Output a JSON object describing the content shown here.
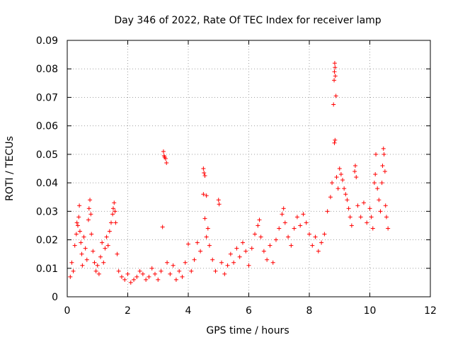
{
  "chart_data": {
    "type": "scatter",
    "title": "Day 346 of 2022, Rate Of TEC Index for receiver lamp",
    "xlabel": "GPS time / hours",
    "ylabel": "ROTI / TECUs",
    "xlim": [
      0,
      12
    ],
    "ylim": [
      0,
      0.09
    ],
    "x_ticks": [
      "0",
      "2",
      "4",
      "6",
      "8",
      "10",
      "12"
    ],
    "y_ticks": [
      "0",
      "0.01",
      "0.02",
      "0.03",
      "0.04",
      "0.05",
      "0.06",
      "0.07",
      "0.08",
      "0.09"
    ],
    "grid": true,
    "marker": "+",
    "color": "#ff0000",
    "series": [
      {
        "name": "ROTI",
        "points": [
          [
            0.1,
            0.007
          ],
          [
            0.15,
            0.012
          ],
          [
            0.2,
            0.009
          ],
          [
            0.25,
            0.018
          ],
          [
            0.3,
            0.022
          ],
          [
            0.32,
            0.026
          ],
          [
            0.35,
            0.025
          ],
          [
            0.38,
            0.028
          ],
          [
            0.4,
            0.032
          ],
          [
            0.42,
            0.023
          ],
          [
            0.45,
            0.019
          ],
          [
            0.48,
            0.015
          ],
          [
            0.5,
            0.011
          ],
          [
            0.55,
            0.021
          ],
          [
            0.6,
            0.017
          ],
          [
            0.65,
            0.013
          ],
          [
            0.7,
            0.027
          ],
          [
            0.72,
            0.031
          ],
          [
            0.75,
            0.034
          ],
          [
            0.78,
            0.029
          ],
          [
            0.8,
            0.022
          ],
          [
            0.85,
            0.016
          ],
          [
            0.9,
            0.012
          ],
          [
            0.95,
            0.009
          ],
          [
            1.0,
            0.011
          ],
          [
            1.05,
            0.008
          ],
          [
            1.1,
            0.014
          ],
          [
            1.15,
            0.019
          ],
          [
            1.2,
            0.012
          ],
          [
            1.25,
            0.017
          ],
          [
            1.3,
            0.021
          ],
          [
            1.35,
            0.018
          ],
          [
            1.4,
            0.023
          ],
          [
            1.45,
            0.026
          ],
          [
            1.5,
            0.029
          ],
          [
            1.52,
            0.031
          ],
          [
            1.55,
            0.033
          ],
          [
            1.58,
            0.03
          ],
          [
            1.6,
            0.026
          ],
          [
            1.65,
            0.015
          ],
          [
            1.7,
            0.009
          ],
          [
            1.8,
            0.007
          ],
          [
            1.9,
            0.006
          ],
          [
            2.0,
            0.008
          ],
          [
            2.1,
            0.005
          ],
          [
            2.2,
            0.006
          ],
          [
            2.3,
            0.007
          ],
          [
            2.4,
            0.009
          ],
          [
            2.5,
            0.008
          ],
          [
            2.6,
            0.006
          ],
          [
            2.7,
            0.007
          ],
          [
            2.8,
            0.01
          ],
          [
            2.9,
            0.008
          ],
          [
            3.0,
            0.006
          ],
          [
            3.1,
            0.009
          ],
          [
            3.15,
            0.0245
          ],
          [
            3.18,
            0.051
          ],
          [
            3.2,
            0.0495
          ],
          [
            3.22,
            0.049
          ],
          [
            3.25,
            0.0485
          ],
          [
            3.28,
            0.047
          ],
          [
            3.3,
            0.012
          ],
          [
            3.4,
            0.008
          ],
          [
            3.5,
            0.011
          ],
          [
            3.6,
            0.006
          ],
          [
            3.7,
            0.009
          ],
          [
            3.8,
            0.007
          ],
          [
            3.9,
            0.012
          ],
          [
            4.0,
            0.0185
          ],
          [
            4.1,
            0.009
          ],
          [
            4.2,
            0.013
          ],
          [
            4.3,
            0.019
          ],
          [
            4.4,
            0.016
          ],
          [
            4.5,
            0.045
          ],
          [
            4.52,
            0.0435
          ],
          [
            4.55,
            0.0425
          ],
          [
            4.5,
            0.036
          ],
          [
            4.6,
            0.0355
          ],
          [
            4.55,
            0.0275
          ],
          [
            4.6,
            0.021
          ],
          [
            4.65,
            0.024
          ],
          [
            4.7,
            0.018
          ],
          [
            4.8,
            0.013
          ],
          [
            4.9,
            0.009
          ],
          [
            5.0,
            0.034
          ],
          [
            5.02,
            0.0325
          ],
          [
            5.1,
            0.012
          ],
          [
            5.2,
            0.008
          ],
          [
            5.3,
            0.011
          ],
          [
            5.4,
            0.015
          ],
          [
            5.5,
            0.012
          ],
          [
            5.6,
            0.017
          ],
          [
            5.7,
            0.014
          ],
          [
            5.8,
            0.019
          ],
          [
            5.9,
            0.016
          ],
          [
            6.0,
            0.011
          ],
          [
            6.1,
            0.017
          ],
          [
            6.2,
            0.022
          ],
          [
            6.3,
            0.025
          ],
          [
            6.35,
            0.027
          ],
          [
            6.4,
            0.021
          ],
          [
            6.5,
            0.016
          ],
          [
            6.6,
            0.013
          ],
          [
            6.7,
            0.018
          ],
          [
            6.8,
            0.012
          ],
          [
            6.9,
            0.02
          ],
          [
            7.0,
            0.024
          ],
          [
            7.1,
            0.029
          ],
          [
            7.15,
            0.031
          ],
          [
            7.2,
            0.026
          ],
          [
            7.3,
            0.021
          ],
          [
            7.4,
            0.018
          ],
          [
            7.5,
            0.024
          ],
          [
            7.6,
            0.028
          ],
          [
            7.7,
            0.025
          ],
          [
            7.8,
            0.029
          ],
          [
            7.9,
            0.026
          ],
          [
            8.0,
            0.022
          ],
          [
            8.1,
            0.018
          ],
          [
            8.2,
            0.021
          ],
          [
            8.3,
            0.016
          ],
          [
            8.4,
            0.019
          ],
          [
            8.5,
            0.022
          ],
          [
            8.6,
            0.03
          ],
          [
            8.7,
            0.035
          ],
          [
            8.75,
            0.04
          ],
          [
            8.8,
            0.0675
          ],
          [
            8.82,
            0.076
          ],
          [
            8.83,
            0.079
          ],
          [
            8.84,
            0.082
          ],
          [
            8.85,
            0.0805
          ],
          [
            8.86,
            0.0775
          ],
          [
            8.88,
            0.0705
          ],
          [
            8.85,
            0.055
          ],
          [
            8.83,
            0.054
          ],
          [
            8.9,
            0.042
          ],
          [
            8.95,
            0.038
          ],
          [
            9.0,
            0.045
          ],
          [
            9.05,
            0.043
          ],
          [
            9.1,
            0.041
          ],
          [
            9.15,
            0.038
          ],
          [
            9.2,
            0.036
          ],
          [
            9.25,
            0.034
          ],
          [
            9.3,
            0.031
          ],
          [
            9.35,
            0.028
          ],
          [
            9.4,
            0.025
          ],
          [
            9.5,
            0.044
          ],
          [
            9.52,
            0.046
          ],
          [
            9.55,
            0.042
          ],
          [
            9.6,
            0.032
          ],
          [
            9.7,
            0.028
          ],
          [
            9.8,
            0.033
          ],
          [
            9.9,
            0.026
          ],
          [
            10.0,
            0.031
          ],
          [
            10.05,
            0.028
          ],
          [
            10.1,
            0.024
          ],
          [
            10.15,
            0.04
          ],
          [
            10.18,
            0.043
          ],
          [
            10.2,
            0.05
          ],
          [
            10.25,
            0.038
          ],
          [
            10.3,
            0.034
          ],
          [
            10.35,
            0.03
          ],
          [
            10.4,
            0.04
          ],
          [
            10.42,
            0.046
          ],
          [
            10.45,
            0.052
          ],
          [
            10.47,
            0.05
          ],
          [
            10.5,
            0.044
          ],
          [
            10.52,
            0.032
          ],
          [
            10.55,
            0.028
          ],
          [
            10.6,
            0.024
          ]
        ]
      }
    ]
  }
}
